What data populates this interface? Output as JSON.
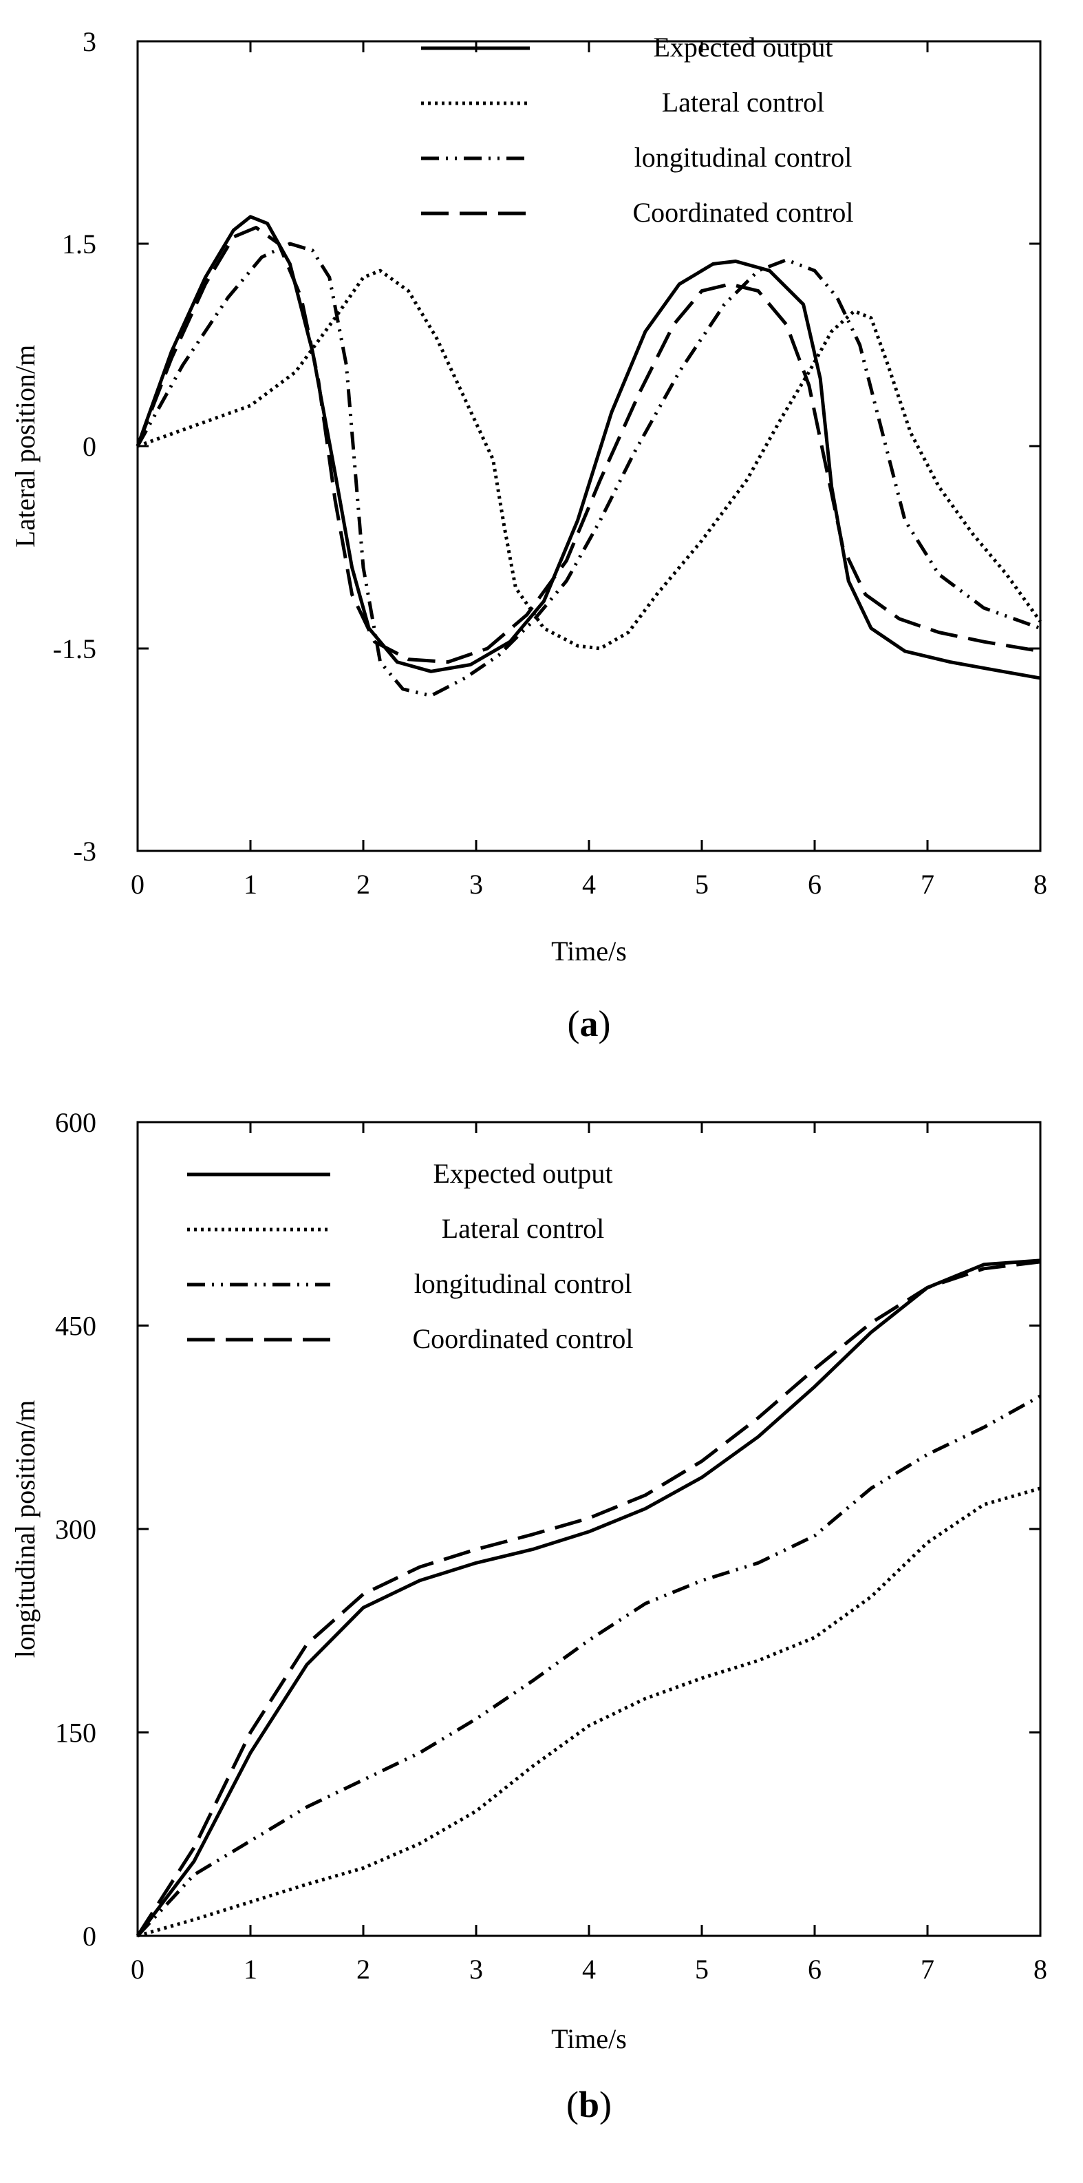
{
  "chart_data": [
    {
      "type": "line",
      "panel_label": "a",
      "xlabel": "Time/s",
      "ylabel": "Lateral  position/m",
      "xlim": [
        0,
        8
      ],
      "ylim": [
        -3,
        3
      ],
      "xticks": [
        "0",
        "1",
        "2",
        "3",
        "4",
        "5",
        "6",
        "7",
        "8"
      ],
      "yticks": [
        "3",
        "1.5",
        "0",
        "-1.5",
        "-3"
      ],
      "legend_position": "top-right",
      "grid": false,
      "series": [
        {
          "name": "Expected output",
          "dash": "solid",
          "points": [
            [
              0,
              0
            ],
            [
              0.3,
              0.7
            ],
            [
              0.6,
              1.25
            ],
            [
              0.85,
              1.6
            ],
            [
              1.0,
              1.7
            ],
            [
              1.15,
              1.65
            ],
            [
              1.35,
              1.35
            ],
            [
              1.55,
              0.7
            ],
            [
              1.75,
              -0.2
            ],
            [
              1.9,
              -0.9
            ],
            [
              2.05,
              -1.35
            ],
            [
              2.3,
              -1.6
            ],
            [
              2.6,
              -1.67
            ],
            [
              2.95,
              -1.62
            ],
            [
              3.3,
              -1.45
            ],
            [
              3.6,
              -1.15
            ],
            [
              3.9,
              -0.55
            ],
            [
              4.2,
              0.25
            ],
            [
              4.5,
              0.85
            ],
            [
              4.8,
              1.2
            ],
            [
              5.1,
              1.35
            ],
            [
              5.3,
              1.37
            ],
            [
              5.6,
              1.3
            ],
            [
              5.9,
              1.05
            ],
            [
              6.05,
              0.5
            ],
            [
              6.15,
              -0.3
            ],
            [
              6.3,
              -1.0
            ],
            [
              6.5,
              -1.35
            ],
            [
              6.8,
              -1.52
            ],
            [
              7.2,
              -1.6
            ],
            [
              7.6,
              -1.66
            ],
            [
              8.0,
              -1.72
            ]
          ]
        },
        {
          "name": "Lateral control",
          "dash": "dotted",
          "points": [
            [
              0,
              0
            ],
            [
              0.5,
              0.15
            ],
            [
              1.0,
              0.3
            ],
            [
              1.4,
              0.55
            ],
            [
              1.75,
              0.95
            ],
            [
              2.0,
              1.25
            ],
            [
              2.15,
              1.3
            ],
            [
              2.4,
              1.15
            ],
            [
              2.65,
              0.8
            ],
            [
              2.9,
              0.35
            ],
            [
              3.15,
              -0.1
            ],
            [
              3.25,
              -0.6
            ],
            [
              3.35,
              -1.05
            ],
            [
              3.6,
              -1.35
            ],
            [
              3.9,
              -1.48
            ],
            [
              4.1,
              -1.5
            ],
            [
              4.35,
              -1.38
            ],
            [
              4.6,
              -1.1
            ],
            [
              5.0,
              -0.7
            ],
            [
              5.4,
              -0.25
            ],
            [
              5.7,
              0.2
            ],
            [
              5.95,
              0.55
            ],
            [
              6.15,
              0.85
            ],
            [
              6.35,
              1.0
            ],
            [
              6.5,
              0.95
            ],
            [
              6.65,
              0.6
            ],
            [
              6.85,
              0.1
            ],
            [
              7.1,
              -0.3
            ],
            [
              7.4,
              -0.65
            ],
            [
              7.7,
              -0.95
            ],
            [
              8.0,
              -1.3
            ]
          ]
        },
        {
          "name": "longitudinal control",
          "dash": "dashdot",
          "points": [
            [
              0,
              0
            ],
            [
              0.4,
              0.6
            ],
            [
              0.8,
              1.1
            ],
            [
              1.1,
              1.4
            ],
            [
              1.35,
              1.5
            ],
            [
              1.55,
              1.45
            ],
            [
              1.7,
              1.25
            ],
            [
              1.85,
              0.6
            ],
            [
              2.0,
              -0.9
            ],
            [
              2.15,
              -1.6
            ],
            [
              2.35,
              -1.8
            ],
            [
              2.6,
              -1.85
            ],
            [
              2.9,
              -1.72
            ],
            [
              3.2,
              -1.55
            ],
            [
              3.5,
              -1.3
            ],
            [
              3.8,
              -1.0
            ],
            [
              4.1,
              -0.55
            ],
            [
              4.4,
              -0.05
            ],
            [
              4.8,
              0.55
            ],
            [
              5.2,
              1.05
            ],
            [
              5.5,
              1.3
            ],
            [
              5.75,
              1.38
            ],
            [
              6.0,
              1.3
            ],
            [
              6.2,
              1.1
            ],
            [
              6.4,
              0.75
            ],
            [
              6.6,
              0.1
            ],
            [
              6.8,
              -0.55
            ],
            [
              7.1,
              -0.95
            ],
            [
              7.5,
              -1.2
            ],
            [
              8.0,
              -1.35
            ]
          ]
        },
        {
          "name": "Coordinated control",
          "dash": "longdash",
          "points": [
            [
              0,
              0
            ],
            [
              0.3,
              0.65
            ],
            [
              0.6,
              1.2
            ],
            [
              0.85,
              1.55
            ],
            [
              1.05,
              1.62
            ],
            [
              1.25,
              1.5
            ],
            [
              1.45,
              1.1
            ],
            [
              1.6,
              0.5
            ],
            [
              1.75,
              -0.4
            ],
            [
              1.9,
              -1.1
            ],
            [
              2.1,
              -1.45
            ],
            [
              2.4,
              -1.58
            ],
            [
              2.75,
              -1.6
            ],
            [
              3.1,
              -1.5
            ],
            [
              3.45,
              -1.25
            ],
            [
              3.8,
              -0.85
            ],
            [
              4.1,
              -0.25
            ],
            [
              4.45,
              0.4
            ],
            [
              4.75,
              0.9
            ],
            [
              5.0,
              1.15
            ],
            [
              5.25,
              1.2
            ],
            [
              5.5,
              1.15
            ],
            [
              5.75,
              0.9
            ],
            [
              5.95,
              0.45
            ],
            [
              6.1,
              -0.15
            ],
            [
              6.25,
              -0.75
            ],
            [
              6.45,
              -1.1
            ],
            [
              6.75,
              -1.28
            ],
            [
              7.1,
              -1.38
            ],
            [
              7.5,
              -1.45
            ],
            [
              8.0,
              -1.52
            ]
          ]
        }
      ]
    },
    {
      "type": "line",
      "panel_label": "b",
      "xlabel": "Time/s",
      "ylabel": "longitudinal position/m",
      "xlim": [
        0,
        8
      ],
      "ylim": [
        0,
        600
      ],
      "xticks": [
        "0",
        "1",
        "2",
        "3",
        "4",
        "5",
        "6",
        "7",
        "8"
      ],
      "yticks": [
        "600",
        "450",
        "300",
        "150",
        "0"
      ],
      "legend_position": "top-left",
      "grid": false,
      "series": [
        {
          "name": "Expected output",
          "dash": "solid",
          "points": [
            [
              0,
              0
            ],
            [
              0.5,
              55
            ],
            [
              1.0,
              135
            ],
            [
              1.5,
              200
            ],
            [
              2.0,
              242
            ],
            [
              2.5,
              262
            ],
            [
              3.0,
              275
            ],
            [
              3.5,
              285
            ],
            [
              4.0,
              298
            ],
            [
              4.5,
              315
            ],
            [
              5.0,
              338
            ],
            [
              5.5,
              368
            ],
            [
              6.0,
              405
            ],
            [
              6.5,
              445
            ],
            [
              7.0,
              478
            ],
            [
              7.5,
              495
            ],
            [
              8.0,
              498
            ]
          ]
        },
        {
          "name": "Lateral control",
          "dash": "dotted",
          "points": [
            [
              0,
              0
            ],
            [
              0.5,
              12
            ],
            [
              1.0,
              25
            ],
            [
              1.5,
              38
            ],
            [
              2.0,
              50
            ],
            [
              2.5,
              68
            ],
            [
              3.0,
              92
            ],
            [
              3.5,
              125
            ],
            [
              4.0,
              155
            ],
            [
              4.5,
              175
            ],
            [
              5.0,
              190
            ],
            [
              5.5,
              203
            ],
            [
              6.0,
              220
            ],
            [
              6.5,
              250
            ],
            [
              7.0,
              290
            ],
            [
              7.5,
              318
            ],
            [
              8.0,
              330
            ]
          ]
        },
        {
          "name": "longitudinal control",
          "dash": "dashdot",
          "points": [
            [
              0,
              0
            ],
            [
              0.5,
              45
            ],
            [
              1.0,
              70
            ],
            [
              1.5,
              95
            ],
            [
              2.0,
              115
            ],
            [
              2.5,
              135
            ],
            [
              3.0,
              160
            ],
            [
              3.5,
              188
            ],
            [
              4.0,
              218
            ],
            [
              4.5,
              245
            ],
            [
              5.0,
              262
            ],
            [
              5.5,
              275
            ],
            [
              6.0,
              295
            ],
            [
              6.5,
              330
            ],
            [
              7.0,
              355
            ],
            [
              7.5,
              375
            ],
            [
              8.0,
              398
            ]
          ]
        },
        {
          "name": "Coordinated control",
          "dash": "longdash",
          "points": [
            [
              0,
              0
            ],
            [
              0.5,
              65
            ],
            [
              1.0,
              150
            ],
            [
              1.5,
              215
            ],
            [
              2.0,
              252
            ],
            [
              2.5,
              272
            ],
            [
              3.0,
              285
            ],
            [
              3.5,
              296
            ],
            [
              4.0,
              308
            ],
            [
              4.5,
              325
            ],
            [
              5.0,
              350
            ],
            [
              5.5,
              382
            ],
            [
              6.0,
              418
            ],
            [
              6.5,
              452
            ],
            [
              7.0,
              478
            ],
            [
              7.5,
              492
            ],
            [
              8.0,
              497
            ]
          ]
        }
      ]
    }
  ]
}
